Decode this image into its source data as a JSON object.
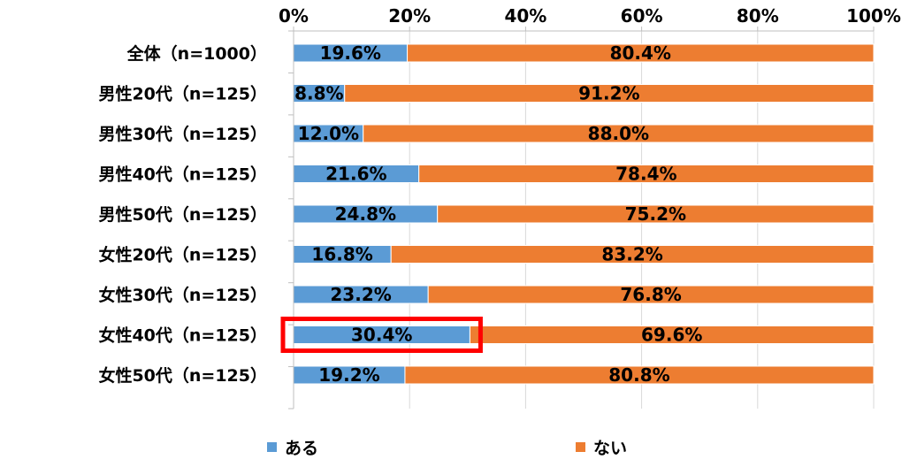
{
  "chart_data": {
    "type": "bar",
    "orientation": "horizontal",
    "stacked": "percent",
    "categories": [
      "全体（n=1000）",
      "男性20代（n=125）",
      "男性30代（n=125）",
      "男性40代（n=125）",
      "男性50代（n=125）",
      "女性20代（n=125）",
      "女性30代（n=125）",
      "女性40代（n=125）",
      "女性50代（n=125）"
    ],
    "series": [
      {
        "name": "ある",
        "color": "#5b9bd5",
        "values": [
          19.6,
          8.8,
          12.0,
          21.6,
          24.8,
          16.8,
          23.2,
          30.4,
          19.2
        ],
        "labels": [
          "19.6%",
          "8.8%",
          "12.0%",
          "21.6%",
          "24.8%",
          "16.8%",
          "23.2%",
          "30.4%",
          "19.2%"
        ]
      },
      {
        "name": "ない",
        "color": "#ed7d31",
        "values": [
          80.4,
          91.2,
          88.0,
          78.4,
          75.2,
          83.2,
          76.8,
          69.6,
          80.8
        ],
        "labels": [
          "80.4%",
          "91.2%",
          "88.0%",
          "78.4%",
          "75.2%",
          "83.2%",
          "76.8%",
          "69.6%",
          "80.8%"
        ]
      }
    ],
    "xticks": [
      "0%",
      "20%",
      "40%",
      "60%",
      "80%",
      "100%"
    ],
    "xlim": [
      0,
      100
    ],
    "axis_position": "top",
    "grid": true,
    "legend": "bottom",
    "highlight": {
      "category_index": 7,
      "series_index": 0,
      "color": "#ff0000"
    }
  }
}
